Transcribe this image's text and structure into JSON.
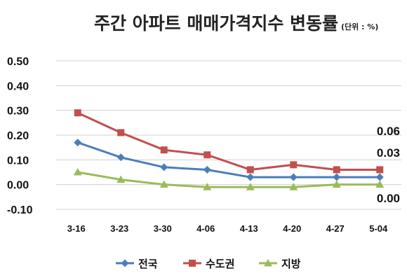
{
  "chart_data": {
    "type": "line",
    "title": "주간 아파트 매매가격지수 변동률",
    "unit": "(단위 : %)",
    "categories": [
      "3-16",
      "3-23",
      "3-30",
      "4-06",
      "4-13",
      "4-20",
      "4-27",
      "5-04"
    ],
    "ylim": [
      -0.1,
      0.5
    ],
    "yticks": [
      "0.50",
      "0.40",
      "0.30",
      "0.20",
      "0.10",
      "0.00",
      "-0.10"
    ],
    "grid": true,
    "legend_position": "bottom",
    "series": [
      {
        "name": "전국",
        "color": "#4a7ebb",
        "marker": "diamond",
        "values": [
          0.17,
          0.11,
          0.07,
          0.06,
          0.03,
          0.03,
          0.03,
          0.03
        ]
      },
      {
        "name": "수도권",
        "color": "#c0504d",
        "marker": "square",
        "values": [
          0.29,
          0.21,
          0.14,
          0.12,
          0.06,
          0.08,
          0.06,
          0.06
        ]
      },
      {
        "name": "지방",
        "color": "#9bbb59",
        "marker": "triangle",
        "values": [
          0.05,
          0.02,
          0.0,
          -0.01,
          -0.01,
          -0.01,
          0.0,
          0.0
        ]
      }
    ],
    "data_labels": [
      "0.06",
      "0.03",
      "0.00"
    ]
  }
}
